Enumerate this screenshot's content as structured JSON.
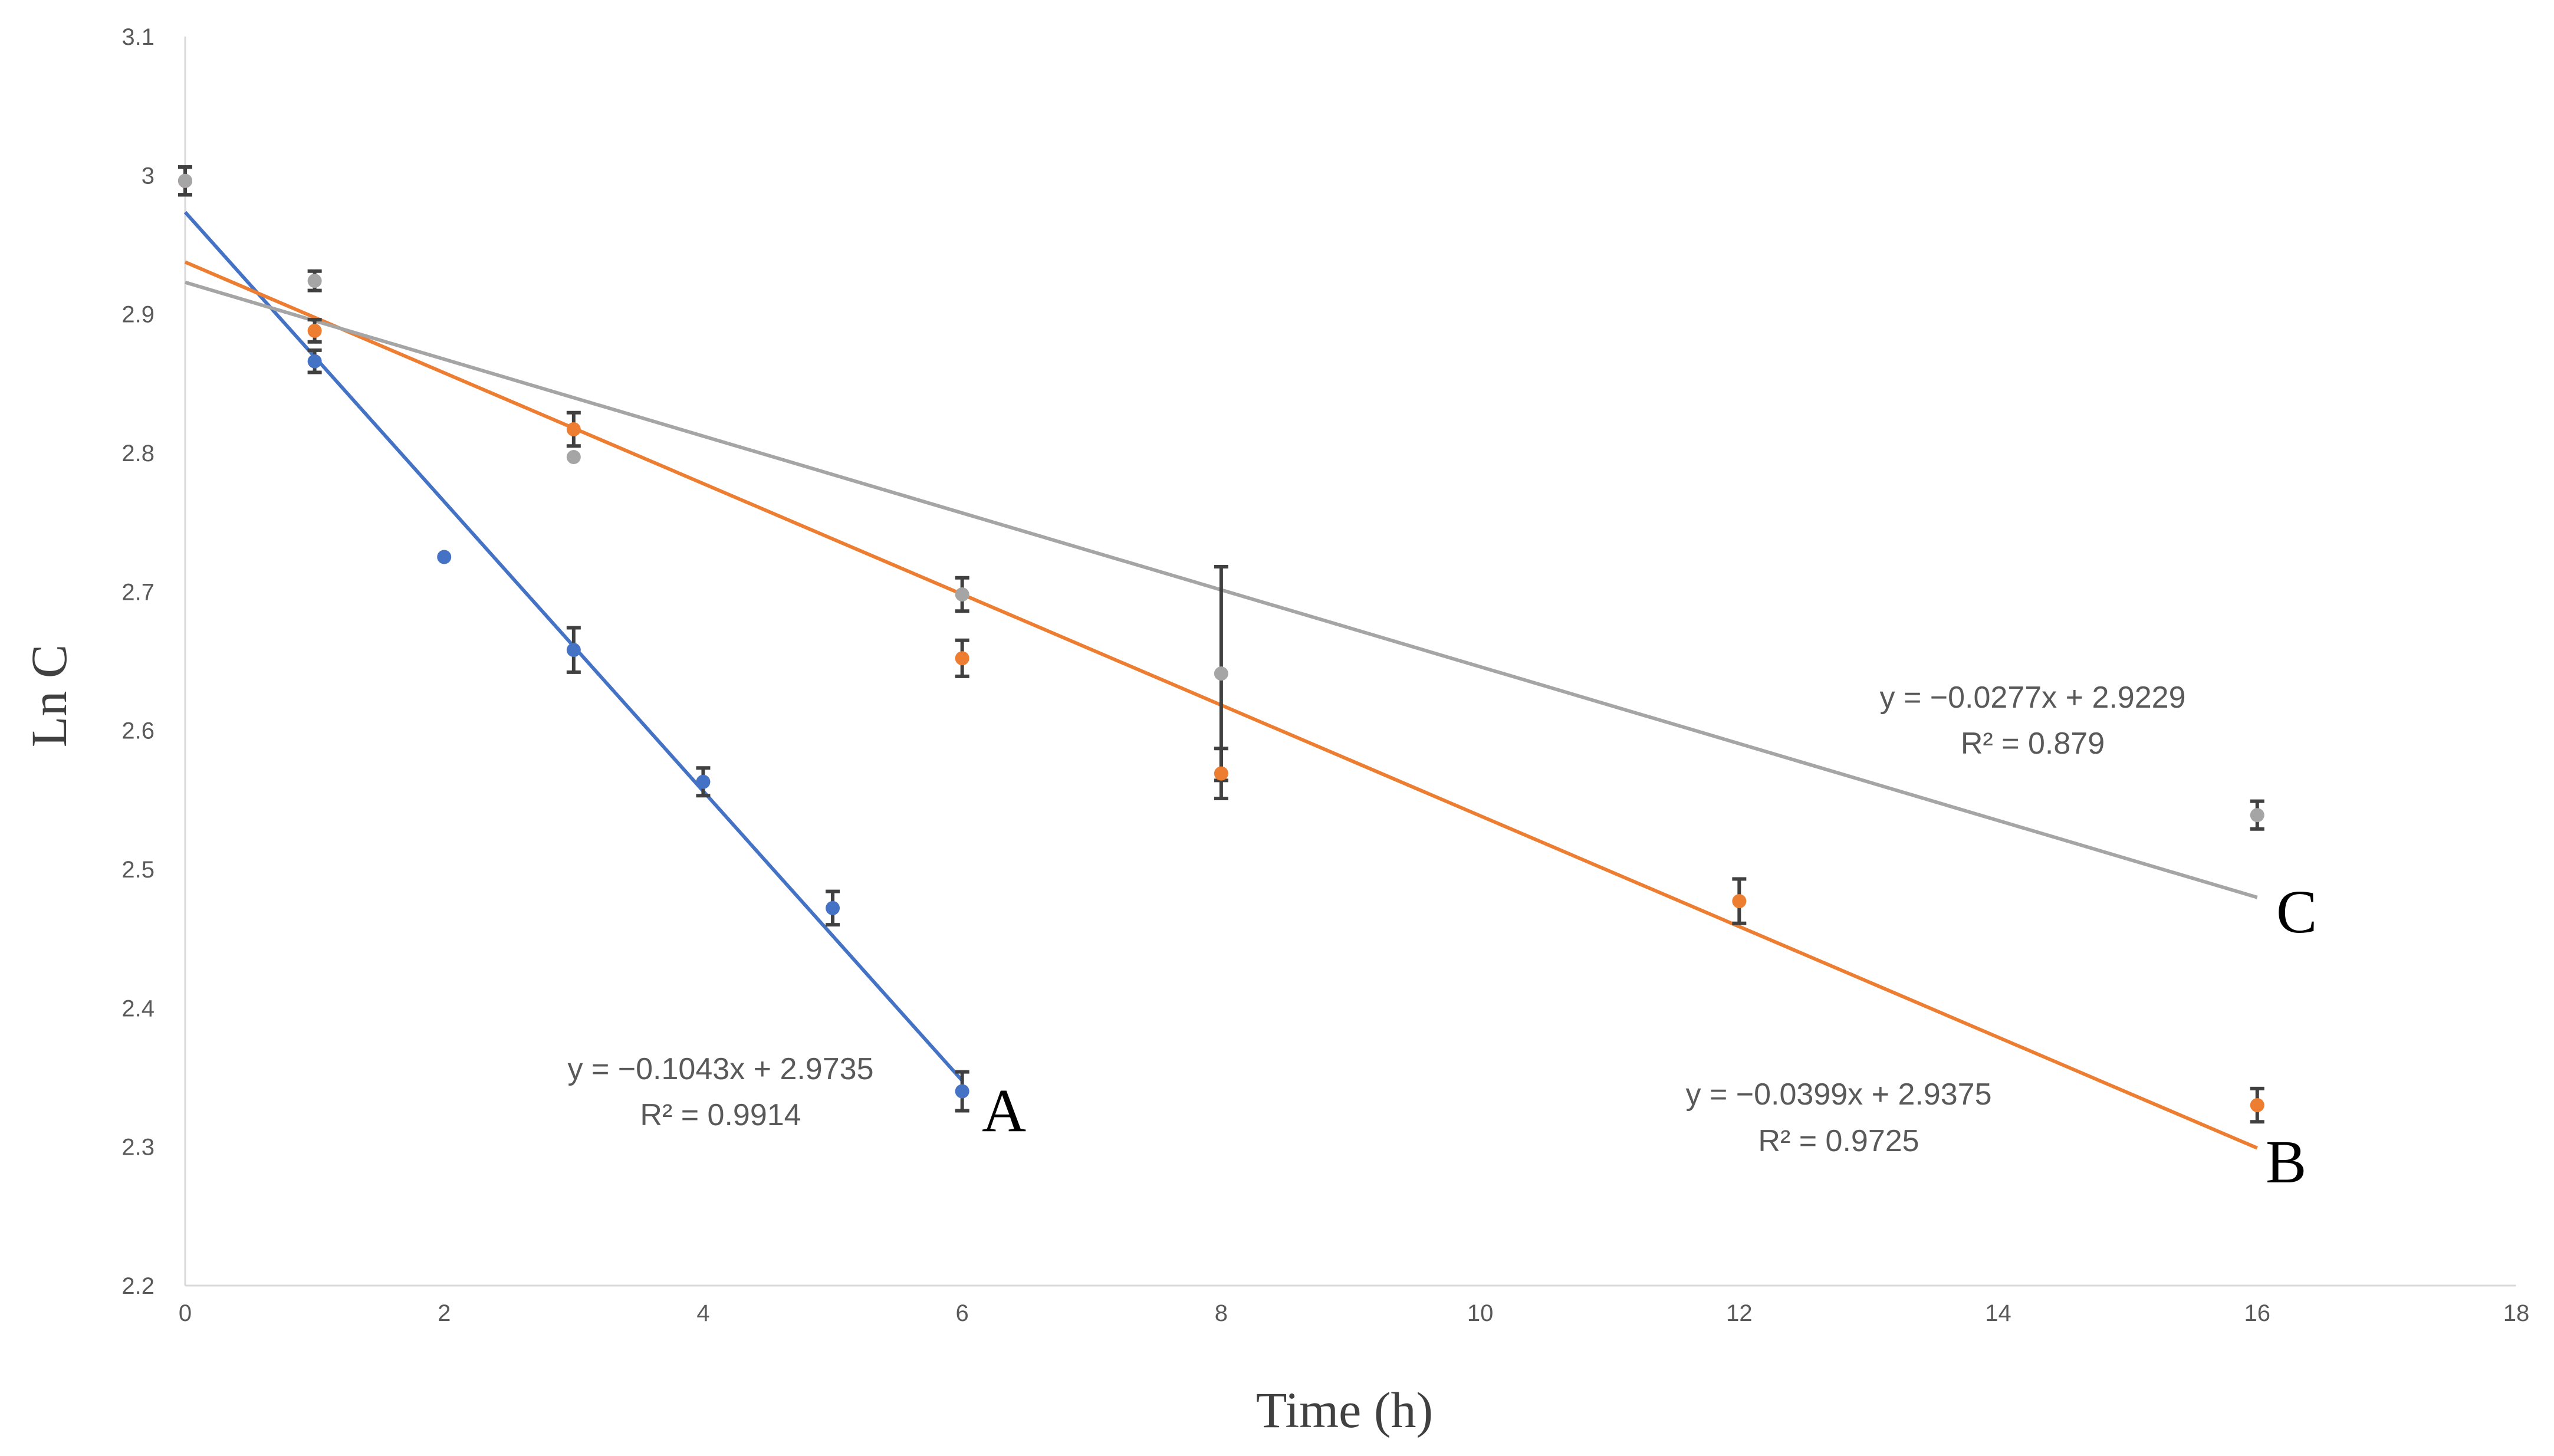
{
  "chart_data": {
    "type": "scatter",
    "xlabel": "Time (h)",
    "ylabel": "Ln C",
    "xlim": [
      0,
      18
    ],
    "ylim": [
      2.2,
      3.1
    ],
    "xticks": [
      0,
      2,
      4,
      6,
      8,
      10,
      12,
      14,
      16,
      18
    ],
    "yticks": [
      "2.2",
      "2.3",
      "2.4",
      "2.5",
      "2.6",
      "2.7",
      "2.8",
      "2.9",
      "3",
      "3.1"
    ],
    "grid": false,
    "series": [
      {
        "name": "A",
        "color": "#4472C4",
        "x": [
          0,
          1,
          2,
          3,
          4,
          5,
          6
        ],
        "y": [
          2.996,
          2.866,
          2.725,
          2.658,
          2.563,
          2.472,
          2.34
        ],
        "err": [
          0.01,
          0.008,
          0,
          0.016,
          0.01,
          0.012,
          0.014
        ],
        "trend": {
          "slope": -0.1043,
          "intercept": 2.9735,
          "x_range": [
            0,
            6
          ]
        },
        "equation": "y = −0.1043x + 2.9735",
        "r2": "R² = 0.9914"
      },
      {
        "name": "B",
        "color": "#ED7D31",
        "x": [
          0,
          1,
          3,
          6,
          8,
          12,
          16
        ],
        "y": [
          2.996,
          2.888,
          2.817,
          2.652,
          2.569,
          2.477,
          2.33
        ],
        "err": [
          0.01,
          0.008,
          0.012,
          0.013,
          0.018,
          0.016,
          0.012
        ],
        "trend": {
          "slope": -0.0399,
          "intercept": 2.9375,
          "x_range": [
            0,
            16
          ]
        },
        "equation": "y = −0.0399x + 2.9375",
        "r2": "R² = 0.9725"
      },
      {
        "name": "C",
        "color": "#A5A5A5",
        "x": [
          0,
          1,
          3,
          6,
          8,
          16
        ],
        "y": [
          2.996,
          2.924,
          2.797,
          2.698,
          2.641,
          2.539
        ],
        "err": [
          0.01,
          0.007,
          0,
          0.012,
          0.077,
          0.01
        ],
        "trend": {
          "slope": -0.0277,
          "intercept": 2.9229,
          "x_range": [
            0,
            16
          ]
        },
        "equation": "y = −0.0277x + 2.9229",
        "r2": "R² = 0.879"
      }
    ]
  }
}
